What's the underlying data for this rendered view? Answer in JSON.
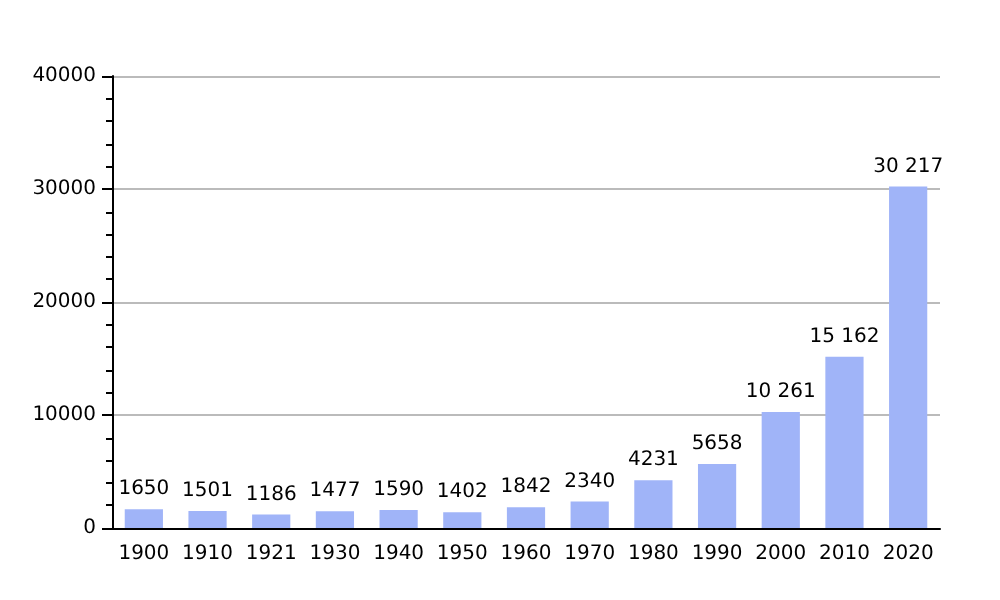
{
  "chart_data": {
    "type": "bar",
    "categories": [
      "1900",
      "1910",
      "1921",
      "1930",
      "1940",
      "1950",
      "1960",
      "1970",
      "1980",
      "1990",
      "2000",
      "2010",
      "2020"
    ],
    "values": [
      1650,
      1501,
      1186,
      1477,
      1590,
      1402,
      1842,
      2340,
      4231,
      5658,
      10261,
      15162,
      30217
    ],
    "value_labels": [
      "1650",
      "1501",
      "1186",
      "1477",
      "1590",
      "1402",
      "1842",
      "2340",
      "4231",
      "5658",
      "10 261",
      "15 162",
      "30 217"
    ],
    "color": "#a0b4f8",
    "ylim": [
      0,
      40000
    ],
    "yticks": [
      0,
      10000,
      20000,
      30000,
      40000
    ],
    "grid": "y"
  }
}
